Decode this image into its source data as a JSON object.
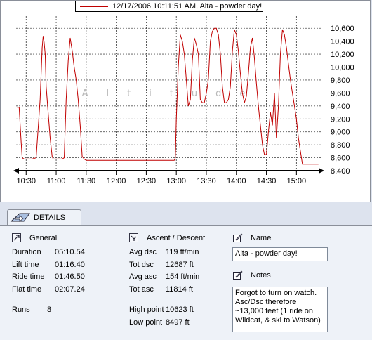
{
  "legend": {
    "label": "12/17/2006 10:11:51 AM, Alta - powder day!",
    "line_color": "#c00000"
  },
  "watermark": "Altitude",
  "chart_data": {
    "type": "line",
    "title": "",
    "xlabel": "",
    "ylabel": "",
    "x_ticks": [
      "10:30",
      "11:00",
      "11:30",
      "12:00",
      "12:30",
      "13:00",
      "13:30",
      "14:00",
      "14:30",
      "15:00"
    ],
    "y_ticks": [
      8400,
      8600,
      8800,
      9000,
      9200,
      9400,
      9600,
      9800,
      10000,
      10200,
      10400,
      10600
    ],
    "y_tick_labels": [
      "8,400",
      "8,600",
      "8,800",
      "9,000",
      "9,200",
      "9,400",
      "9,600",
      "9,800",
      "10,000",
      "10,200",
      "10,400",
      "10,600"
    ],
    "xlim_minutes_since_1000": [
      20,
      325
    ],
    "ylim": [
      8400,
      10700
    ],
    "grid": true,
    "series": [
      {
        "color": "#c00000",
        "x_minutes_since_1000": [
          21,
          23,
          25,
          26,
          28,
          32,
          36,
          40,
          44,
          46,
          47,
          48,
          49,
          50,
          52,
          54,
          56,
          57,
          58,
          60,
          62,
          64,
          66,
          68,
          70,
          72,
          74,
          76,
          78,
          80,
          82,
          84,
          86,
          88,
          90,
          92,
          94,
          96,
          98,
          100,
          104,
          110,
          120,
          130,
          140,
          150,
          160,
          170,
          175,
          178,
          179,
          180,
          182,
          184,
          186,
          188,
          190,
          192,
          194,
          196,
          198,
          200,
          202,
          204,
          206,
          208,
          210,
          212,
          214,
          216,
          218,
          220,
          222,
          224,
          226,
          228,
          230,
          232,
          234,
          236,
          238,
          240,
          242,
          244,
          246,
          248,
          250,
          252,
          254,
          256,
          258,
          260,
          262,
          264,
          266,
          268,
          270,
          272,
          274,
          276,
          278,
          280,
          282,
          284,
          286,
          288,
          290,
          292,
          294,
          296,
          298,
          300,
          302,
          304,
          306,
          308,
          310,
          312,
          314,
          316,
          318,
          320,
          322
        ],
        "y": [
          9380,
          9380,
          8850,
          8600,
          8580,
          8580,
          8580,
          8600,
          9500,
          10300,
          10480,
          10380,
          10200,
          9700,
          9300,
          8900,
          8620,
          8580,
          8580,
          8580,
          8580,
          8580,
          8580,
          8600,
          9500,
          10100,
          10450,
          10250,
          10000,
          9800,
          9500,
          9100,
          8620,
          8580,
          8560,
          8560,
          8560,
          8560,
          8560,
          8560,
          8560,
          8560,
          8560,
          8560,
          8560,
          8560,
          8560,
          8560,
          8560,
          8560,
          8600,
          9200,
          10000,
          10500,
          10400,
          10200,
          9800,
          9400,
          9500,
          10100,
          10450,
          10350,
          10200,
          9500,
          9450,
          9450,
          9600,
          9800,
          10400,
          10550,
          10600,
          10600,
          10500,
          10200,
          9700,
          9450,
          9450,
          9500,
          9700,
          10250,
          10580,
          10500,
          10250,
          9900,
          9600,
          9450,
          9550,
          9900,
          10300,
          10450,
          10150,
          9750,
          9400,
          9100,
          8800,
          8650,
          8650,
          9000,
          9300,
          9100,
          9600,
          8900,
          9400,
          10200,
          10580,
          10500,
          10300,
          10050,
          9800,
          9600,
          9400,
          9200,
          8900,
          8700,
          8500,
          8500,
          8500,
          8500,
          8500,
          8500,
          8500,
          8500,
          8500
        ]
      }
    ]
  },
  "tab": {
    "label": "DETAILS"
  },
  "general": {
    "title": "General",
    "rows": [
      {
        "label": "Duration",
        "value": "05:10.54"
      },
      {
        "label": "Lift time",
        "value": "01:16.40"
      },
      {
        "label": "Ride time",
        "value": "01:46.50"
      },
      {
        "label": "Flat time",
        "value": "02:07.24"
      }
    ],
    "runs_label": "Runs",
    "runs_value": "8"
  },
  "ascent": {
    "title": "Ascent / Descent",
    "rows": [
      {
        "label": "Avg dsc",
        "value": "119 ft/min"
      },
      {
        "label": "Tot dsc",
        "value": "12687 ft"
      },
      {
        "label": "Avg asc",
        "value": "154 ft/min"
      },
      {
        "label": "Tot asc",
        "value": "11814 ft"
      }
    ],
    "high_label": "High point",
    "high_value": "10623 ft",
    "low_label": "Low point",
    "low_value": "8497 ft"
  },
  "name": {
    "title": "Name",
    "value": "Alta - powder day!"
  },
  "notes": {
    "title": "Notes",
    "value": "Forgot to turn on watch. Asc/Dsc therefore ~13,000 feet (1 ride on Wildcat, & ski to Watson)"
  }
}
